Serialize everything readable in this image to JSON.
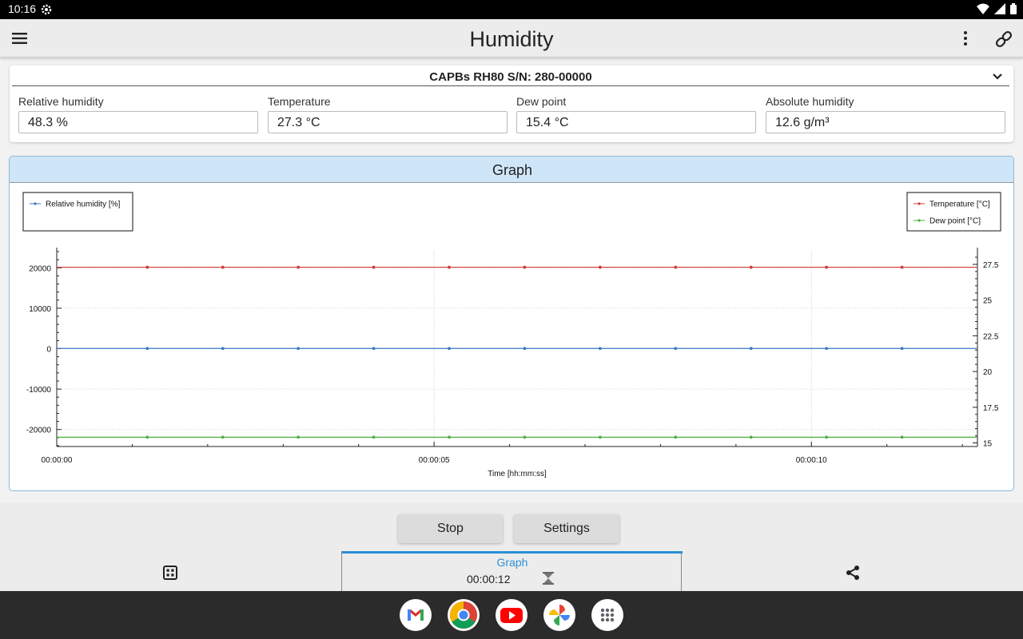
{
  "status_bar": {
    "time": "10:16",
    "icons": [
      "settings-icon",
      "wifi-icon",
      "signal-icon",
      "battery-icon"
    ]
  },
  "app_bar": {
    "title": "Humidity",
    "icons": [
      "menu-icon",
      "more-vert-icon",
      "link-icon"
    ]
  },
  "device": {
    "selector_label": "CAPBs RH80 S/N: 280-00000",
    "fields": [
      {
        "label": "Relative humidity",
        "value": "48.3 %"
      },
      {
        "label": "Temperature",
        "value": "27.3 °C"
      },
      {
        "label": "Dew point",
        "value": "15.4 °C"
      },
      {
        "label": "Absolute humidity",
        "value": "12.6 g/m³"
      }
    ]
  },
  "graph": {
    "header": "Graph"
  },
  "chart_data": {
    "type": "line",
    "xlabel": "Time [hh:mm:ss]",
    "x_ticks": [
      "00:00:00",
      "00:00:05",
      "00:00:10"
    ],
    "x_tick_values": [
      0,
      5,
      10
    ],
    "xlim": [
      0,
      12.2
    ],
    "left_axis": {
      "ticks": [
        20000,
        10000,
        0,
        -10000,
        -20000
      ],
      "ylim": [
        -24200,
        24200
      ]
    },
    "right_axis": {
      "ticks": [
        27.5,
        25,
        22.5,
        20,
        17.5,
        15
      ],
      "ylim": [
        14.75,
        28.45
      ]
    },
    "x": [
      1.2,
      2.2,
      3.2,
      4.2,
      5.2,
      6.2,
      7.2,
      8.2,
      9.2,
      10.2,
      11.2
    ],
    "series": [
      {
        "name": "Relative humidity [%]",
        "axis": "left",
        "color": "#3b78c4",
        "values": [
          48.3,
          48.3,
          48.3,
          48.3,
          48.3,
          48.3,
          48.3,
          48.3,
          48.3,
          48.3,
          48.3
        ]
      },
      {
        "name": "Temperature [°C]",
        "axis": "right",
        "color": "#d23c3c",
        "values": [
          27.3,
          27.3,
          27.3,
          27.3,
          27.3,
          27.3,
          27.3,
          27.3,
          27.3,
          27.3,
          27.3
        ]
      },
      {
        "name": "Dew point [°C]",
        "axis": "right",
        "color": "#4caf3f",
        "values": [
          15.4,
          15.4,
          15.4,
          15.4,
          15.4,
          15.4,
          15.4,
          15.4,
          15.4,
          15.4,
          15.4
        ]
      }
    ],
    "legends": {
      "left": [
        "Relative humidity [%]"
      ],
      "right": [
        "Temperature [°C]",
        "Dew point [°C]"
      ],
      "placement": [
        "top-left",
        "top-right"
      ]
    },
    "grid": true
  },
  "buttons": {
    "stop": "Stop",
    "settings": "Settings"
  },
  "bottom_nav": {
    "left_icon": "grid-view-icon",
    "mid_label": "Graph",
    "timer": "00:00:12",
    "mid_icon": "hourglass-icon",
    "right_icon": "share-icon"
  },
  "dock": {
    "apps": [
      "gmail-icon",
      "chrome-icon",
      "youtube-icon",
      "photos-icon",
      "app-drawer-icon"
    ]
  }
}
